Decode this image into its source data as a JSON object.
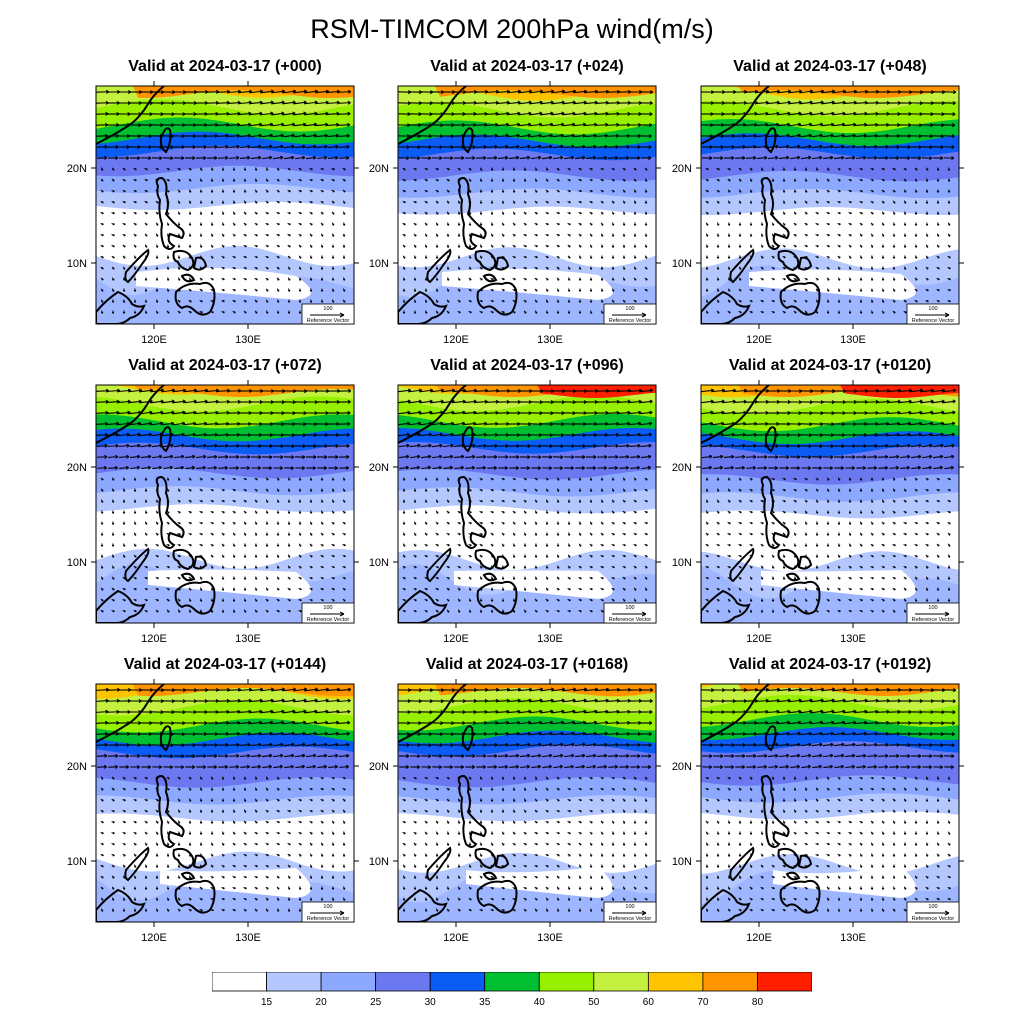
{
  "title": "RSM-TIMCOM 200hPa wind(m/s)",
  "panels": [
    {
      "label": "Valid at 2024-03-17 (+000)",
      "lead": 0
    },
    {
      "label": "Valid at 2024-03-17 (+024)",
      "lead": 24
    },
    {
      "label": "Valid at 2024-03-17 (+048)",
      "lead": 48
    },
    {
      "label": "Valid at 2024-03-17 (+072)",
      "lead": 72
    },
    {
      "label": "Valid at 2024-03-17 (+096)",
      "lead": 96
    },
    {
      "label": "Valid at 2024-03-17 (+0120)",
      "lead": 120
    },
    {
      "label": "Valid at 2024-03-17 (+0144)",
      "lead": 144
    },
    {
      "label": "Valid at 2024-03-17 (+0168)",
      "lead": 168
    },
    {
      "label": "Valid at 2024-03-17 (+0192)",
      "lead": 192
    }
  ],
  "axes": {
    "lon_ticks": [
      "120E",
      "130E"
    ],
    "lat_ticks": [
      "20N",
      "10N"
    ]
  },
  "reference_vector": {
    "value": "100",
    "label": "Reference Vector"
  },
  "colorbar": {
    "levels": [
      "15",
      "20",
      "25",
      "30",
      "35",
      "40",
      "50",
      "60",
      "70",
      "80"
    ],
    "colors": [
      "#ffffff",
      "#b4c8ff",
      "#8ca8ff",
      "#6c78f0",
      "#0a5cf5",
      "#00c032",
      "#96f000",
      "#c4f040",
      "#ffc400",
      "#ff9400",
      "#ff1e00"
    ]
  },
  "chart_data": {
    "type": "map",
    "variable": "200hPa wind (m/s)",
    "domain": {
      "lon_range": [
        114,
        134
      ],
      "lat_range": [
        3,
        29
      ]
    },
    "wind_speed_bands_by_panel": [
      {
        "lead": 0,
        "max_speed_band": "70-80",
        "jet_core_lat_band": "22-27"
      },
      {
        "lead": 24,
        "max_speed_band": "70-80",
        "jet_core_lat_band": "22-27"
      },
      {
        "lead": 48,
        "max_speed_band": "70-80",
        "jet_core_lat_band": "21-27"
      },
      {
        "lead": 72,
        "max_speed_band": "70-80",
        "jet_core_lat_band": "21-28"
      },
      {
        "lead": 96,
        "max_speed_band": "80+",
        "jet_core_lat_band": "21-28"
      },
      {
        "lead": 120,
        "max_speed_band": "80+",
        "jet_core_lat_band": "21-28"
      },
      {
        "lead": 144,
        "max_speed_band": "70-80",
        "jet_core_lat_band": "22-28"
      },
      {
        "lead": 168,
        "max_speed_band": "70-80",
        "jet_core_lat_band": "22-28"
      },
      {
        "lead": 192,
        "max_speed_band": "70-80",
        "jet_core_lat_band": "22-28"
      }
    ]
  }
}
